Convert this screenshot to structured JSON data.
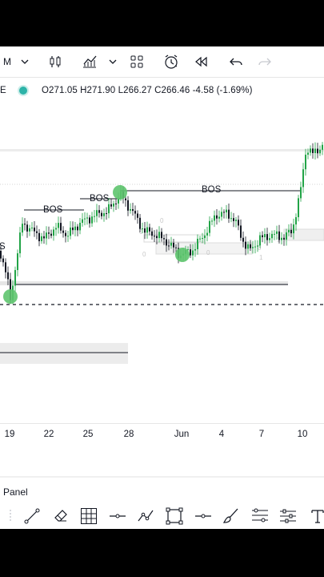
{
  "toolbar": {
    "interval_label": "M",
    "icons": [
      "chevron-down",
      "bar-style",
      "indicators",
      "chevron-down",
      "templates",
      "alert",
      "replay",
      "undo",
      "redo"
    ]
  },
  "legend": {
    "symbol_suffix": "E",
    "ohlc": "O271.05 H271.90 L266.27 C266.46 -4.58 (-1.69%)",
    "status_color": "#2db3a8"
  },
  "chart": {
    "labels": [
      "BOS",
      "BOS",
      "BOS"
    ],
    "cut_label": "S",
    "candle_color": "#22a447",
    "marker_color": "#5ec46e"
  },
  "xaxis": {
    "ticks": [
      "19",
      "22",
      "25",
      "28",
      "Jun",
      "4",
      "7",
      "10"
    ]
  },
  "bottom": {
    "panel_label": "Panel",
    "tools": [
      "line-tool",
      "eraser-tool",
      "grid-tool",
      "horizontal-ray-tool",
      "pattern-tool",
      "rectangle-tool",
      "horizontal-line-tool",
      "brush-tool",
      "fib-tool",
      "settings-tool",
      "text-tool"
    ]
  }
}
